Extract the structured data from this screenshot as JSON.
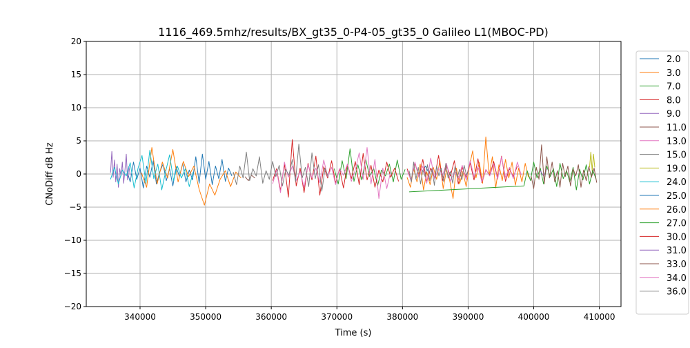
{
  "chart_data": {
    "type": "line",
    "title": "1116_469.5mhz/results/BX_gt35_0-P4-05_gt35_0 Galileo L1(MBOC-PD)",
    "xlabel": "Time (s)",
    "ylabel": "CNoDiff dB Hz",
    "xlim": [
      331800,
      413300
    ],
    "ylim": [
      -20,
      20
    ],
    "xticks": [
      340000,
      350000,
      360000,
      370000,
      380000,
      390000,
      400000,
      410000
    ],
    "xtick_labels": [
      "340000",
      "350000",
      "360000",
      "370000",
      "380000",
      "390000",
      "400000",
      "410000"
    ],
    "yticks": [
      -20,
      -15,
      -10,
      -5,
      0,
      5,
      10,
      15,
      20
    ],
    "ytick_labels": [
      "−20",
      "−15",
      "−10",
      "−5",
      "0",
      "5",
      "10",
      "15",
      "20"
    ],
    "grid": true,
    "legend_placement": "outside-right",
    "series": [
      {
        "name": "2.0",
        "color": "#1f77b4",
        "x_start": 338000,
        "x_step": 500,
        "y": [
          0.5,
          -1.2,
          1.8,
          -0.8,
          0.9,
          -2.1,
          1.2,
          -0.5,
          2.0,
          -1.5,
          0.3,
          1.5,
          -1.0,
          0.8,
          -1.8,
          1.1,
          -0.4,
          1.6,
          -1.2,
          0.6,
          -0.9,
          2.6,
          -1.4,
          3.0,
          -0.8,
          1.9,
          -1.6,
          1.2,
          -0.7,
          2.2,
          -1.1,
          0.9,
          -0.3
        ]
      },
      {
        "name": "3.0",
        "color": "#ff7f0e",
        "x_start": 340200,
        "x_step": 800,
        "y": [
          0.2,
          -2.0,
          4.0,
          -1.5,
          1.8,
          -0.6,
          3.7,
          -1.2,
          1.9,
          -0.4,
          1.2,
          -2.3,
          -4.7,
          -1.5,
          -3.2,
          -0.8,
          0.5,
          -1.9,
          0.3,
          -0.6
        ]
      },
      {
        "name": "7.0",
        "color": "#2ca02c",
        "x_start": 369600,
        "x_step": 600,
        "y": [
          0.8,
          -1.5,
          2.0,
          -0.7,
          3.8,
          -1.1,
          1.4,
          -0.9,
          2.2,
          -0.4,
          0.9,
          -1.8,
          0.6,
          -0.3,
          1.5,
          -1.2,
          2.1,
          -0.8,
          0.7
        ]
      },
      {
        "name": "8.0",
        "color": "#d62728",
        "x_start": 360200,
        "x_step": 600,
        "y": [
          -1.0,
          0.8,
          -2.5,
          1.5,
          -3.5,
          5.2,
          -1.8,
          0.9,
          -2.8,
          1.6,
          -0.9,
          2.7,
          -3.2,
          1.1,
          -0.6,
          2.0,
          -1.4,
          0.8,
          -2.1,
          1.5,
          -0.7,
          1.9,
          -1.6,
          3.1,
          -0.9,
          1.3,
          -2.0,
          0.6,
          -1.2,
          1.8,
          -0.5,
          0.9,
          -1.1
        ]
      },
      {
        "name": "9.0",
        "color": "#9467bd",
        "x_start": 335500,
        "x_step": 200,
        "y": [
          0.2,
          3.4,
          -0.5,
          2.1,
          -1.2,
          1.5,
          -2.0,
          0.8,
          -0.3,
          1.8,
          -1.4,
          0.6,
          3.0,
          -0.9,
          1.2,
          -0.2
        ]
      },
      {
        "name": "11.0",
        "color": "#8c564b",
        "x_start": 356000,
        "x_step": 500,
        "y": [
          -0.4,
          -1.0,
          -0.2,
          -0.6
        ]
      },
      {
        "name": "13.0",
        "color": "#e377c2",
        "x_start": 360200,
        "x_step": 600,
        "y": [
          -1.5,
          0.6,
          -2.8,
          1.8,
          -0.5,
          1.2,
          -1.0,
          0.4,
          -2.0,
          1.4,
          -0.6,
          0.9,
          -1.3,
          2.1,
          -0.4,
          1.0,
          -1.6,
          0.8,
          -0.2,
          1.5,
          -1.1,
          0.6,
          3.2,
          -0.8,
          4.0,
          -1.5,
          2.2,
          -3.7,
          0.9,
          -2.2,
          0.4
        ]
      },
      {
        "name": "15.0",
        "color": "#7f7f7f",
        "x_start": 354200,
        "x_step": 500,
        "y": [
          0.3,
          -1.6,
          1.2,
          -0.6,
          3.3,
          -1.0,
          0.8,
          -0.3,
          2.6,
          -1.4,
          0.5,
          -0.8,
          1.9,
          -0.4,
          1.3,
          -1.8,
          0.7,
          -0.2,
          2.2,
          -1.1,
          4.5,
          -0.6,
          1.0,
          -1.9,
          3.2,
          -0.7,
          1.4,
          -2.6,
          0.9,
          -0.5
        ]
      },
      {
        "name": "19.0",
        "color": "#bcbd22",
        "x_start": 408500,
        "x_step": 200,
        "y": [
          1.0,
          3.3,
          0.5,
          3.0,
          1.0
        ]
      },
      {
        "name": "24.0",
        "color": "#17becf",
        "x_start": 335500,
        "x_step": 600,
        "y": [
          -0.8,
          1.0,
          -1.5,
          0.6,
          -0.3,
          1.7,
          -2.1,
          0.9,
          2.8,
          -1.4,
          3.6,
          -0.7,
          1.5,
          -2.4,
          0.4,
          2.9,
          -1.0,
          1.2,
          -0.6,
          0.8,
          -1.9,
          0.3
        ]
      },
      {
        "name": "25.0",
        "color": "#1f77b4",
        "x_start": 383000,
        "x_step": 500,
        "y": [
          0.4,
          1.2,
          0.2
        ]
      },
      {
        "name": "26.0",
        "color": "#ff7f0e",
        "x_start": 380700,
        "x_step": 500,
        "y": [
          -0.5,
          -2.0,
          0.8,
          -1.2,
          1.5,
          -2.4,
          0.3,
          -1.6,
          1.0,
          -0.8,
          2.0,
          -2.2,
          0.6,
          -1.0,
          -3.7,
          0.9,
          -1.5,
          0.4,
          -1.9,
          1.2,
          3.5,
          -0.6,
          1.8,
          -1.4,
          5.6,
          -0.2,
          2.6,
          -2.1,
          1.4,
          -1.0,
          2.2,
          -0.6,
          1.8,
          -1.7,
          0.9,
          -1.2,
          1.6,
          -0.5
        ]
      },
      {
        "name": "27.0",
        "color": "#2ca02c",
        "points": [
          [
            381000,
            -2.7
          ],
          [
            398500,
            -1.8
          ],
          [
            399000,
            0.5
          ],
          [
            399500,
            -1.0
          ],
          [
            400000,
            1.8
          ],
          [
            400500,
            -0.6
          ],
          [
            401000,
            0.9
          ],
          [
            401500,
            -1.5
          ],
          [
            402000,
            1.2
          ],
          [
            402500,
            -0.4
          ],
          [
            403000,
            0.8
          ],
          [
            403500,
            -1.9
          ],
          [
            404000,
            1.6
          ],
          [
            404500,
            -0.7
          ],
          [
            405000,
            0.5
          ],
          [
            405500,
            -1.2
          ],
          [
            406000,
            1.0
          ],
          [
            406500,
            -2.4
          ],
          [
            407000,
            0.7
          ],
          [
            407500,
            -0.9
          ],
          [
            408000,
            1.4
          ],
          [
            408500,
            -1.5
          ],
          [
            409000,
            0.6
          ],
          [
            409500,
            -0.8
          ]
        ]
      },
      {
        "name": "30.0",
        "color": "#d62728",
        "x_start": 380700,
        "x_step": 600,
        "y": [
          0.8,
          -0.9,
          1.6,
          -0.4,
          2.2,
          -1.2,
          0.9,
          -0.6,
          2.8,
          -1.0,
          1.3,
          -0.3,
          2.0,
          -1.5,
          1.0,
          -0.5,
          1.7,
          -0.9,
          2.3,
          -1.3,
          0.6,
          -0.2,
          1.9,
          -0.7,
          2.7,
          -1.1,
          0.8,
          -0.4,
          1.2
        ]
      },
      {
        "name": "31.0",
        "color": "#9467bd",
        "x_start": 401000,
        "x_step": 500,
        "y": [
          0.5,
          -0.3,
          0.8
        ]
      },
      {
        "name": "33.0",
        "color": "#8c564b",
        "x_start": 399600,
        "x_step": 400,
        "y": [
          -0.3,
          -2.2,
          1.0,
          -0.8,
          4.4,
          -1.5,
          2.6,
          -0.6,
          1.8,
          -1.2,
          0.5,
          -2.0,
          1.6,
          -0.4,
          1.2,
          -1.8,
          0.8,
          -0.3,
          1.4,
          -2.0,
          0.6,
          -1.0,
          1.1,
          -0.5,
          0.9,
          -1.3
        ]
      },
      {
        "name": "34.0",
        "color": "#e377c2",
        "x_start": 380700,
        "x_step": 600,
        "y": [
          0.6,
          -1.0,
          1.8,
          -0.5,
          1.2,
          -1.4,
          2.4,
          -0.8,
          0.9,
          -0.2,
          1.6,
          -1.1,
          0.4,
          -0.6,
          1.3,
          -0.9,
          2.0,
          -0.4,
          1.1,
          -1.2,
          0.7,
          -0.3,
          1.5,
          -0.8,
          2.6,
          -0.5,
          1.0,
          -0.7,
          1.8,
          -0.2
        ]
      },
      {
        "name": "36.0",
        "color": "#7f7f7f",
        "x_start": 381000,
        "x_step": 350,
        "y": [
          0.5,
          -1.2,
          1.8,
          -0.8,
          1.0,
          -1.5,
          0.6,
          -0.4,
          1.4,
          -1.0,
          0.8,
          -1.7,
          1.2,
          -0.3,
          0.9,
          -1.1,
          1.6,
          -0.6,
          0.4,
          -1.4,
          1.1,
          -0.5,
          0.7,
          -0.9,
          1.3,
          -0.2,
          0.6
        ]
      }
    ]
  }
}
